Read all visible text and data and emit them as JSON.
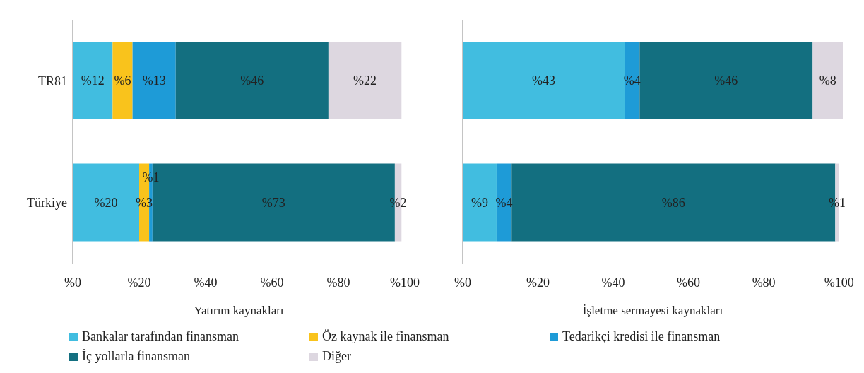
{
  "chart_data": [
    {
      "type": "bar",
      "orientation": "horizontal",
      "stacked": true,
      "xlabel": "Yatırım kaynakları",
      "categories": [
        "TR81",
        "Türkiye"
      ],
      "xlim": [
        0,
        100
      ],
      "xticks": [
        {
          "value": 0,
          "label": "%0"
        },
        {
          "value": 20,
          "label": "%20"
        },
        {
          "value": 40,
          "label": "%40"
        },
        {
          "value": 60,
          "label": "%60"
        },
        {
          "value": 80,
          "label": "%80"
        },
        {
          "value": 100,
          "label": "%100"
        }
      ],
      "grid": false,
      "legend": "bottom",
      "series": [
        {
          "name": "Bankalar tarafından finansman",
          "color": "#41bde0",
          "values": [
            12,
            20
          ],
          "value_labels": [
            "%12",
            "%20"
          ]
        },
        {
          "name": "Öz kaynak ile finansman",
          "color": "#f9c31c",
          "values": [
            6,
            3
          ],
          "value_labels": [
            "%6",
            "%3"
          ]
        },
        {
          "name": "Tedarikçi kredisi ile finansman",
          "color": "#1e9bd7",
          "values": [
            13,
            1
          ],
          "value_labels": [
            "%13",
            "%1"
          ]
        },
        {
          "name": "İç yollarla finansman",
          "color": "#136f80",
          "values": [
            46,
            73
          ],
          "value_labels": [
            "%46",
            "%73"
          ]
        },
        {
          "name": "Diğer",
          "color": "#ddd7e0",
          "values": [
            22,
            2
          ],
          "value_labels": [
            "%22",
            "%2"
          ]
        }
      ]
    },
    {
      "type": "bar",
      "orientation": "horizontal",
      "stacked": true,
      "xlabel": "İşletme sermayesi kaynakları",
      "categories": [
        null,
        null
      ],
      "tick_labels": "x",
      "xlim": [
        0,
        101
      ],
      "xticks": [
        {
          "value": 0,
          "label": "%0"
        },
        {
          "value": 20,
          "label": "%20"
        },
        {
          "value": 40,
          "label": "%40"
        },
        {
          "value": 60,
          "label": "%60"
        },
        {
          "value": 80,
          "label": "%80"
        },
        {
          "value": 100,
          "label": "%100"
        }
      ],
      "grid": false,
      "series": [
        {
          "color": "#41bde0",
          "values": [
            43,
            9
          ],
          "value_labels": [
            "%43",
            "%9"
          ]
        },
        {
          "color": "#f9c31c",
          "values": [
            null,
            null
          ],
          "value_labels": [
            null,
            null
          ]
        },
        {
          "color": "#1e9bd7",
          "values": [
            4,
            4
          ],
          "value_labels": [
            "%4",
            "%4"
          ]
        },
        {
          "color": "#136f80",
          "values": [
            46,
            86
          ],
          "value_labels": [
            "%46",
            "%86"
          ]
        },
        {
          "color": "#ddd7e0",
          "values": [
            8,
            1
          ],
          "value_labels": [
            "%8",
            "%1"
          ]
        }
      ]
    }
  ]
}
